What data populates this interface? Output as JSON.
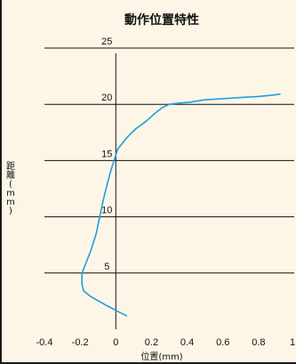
{
  "chart_data": {
    "type": "line",
    "title": "動作位置特性",
    "xlabel": "位置(mm)",
    "ylabel": "距離(mm)",
    "xlim": [
      -0.4,
      1.0
    ],
    "ylim": [
      0,
      25
    ],
    "x_ticks": [
      "-0.4",
      "-0.2",
      "0",
      "0.2",
      "0.4",
      "0.6",
      "0.8",
      "1"
    ],
    "y_ticks": [
      "25",
      "20",
      "15",
      "10",
      "5"
    ],
    "grid": "horizontal",
    "series": [
      {
        "color": "#1ea0dc",
        "points": [
          [
            0.06,
            1.2
          ],
          [
            0.01,
            1.6
          ],
          [
            -0.05,
            2.1
          ],
          [
            -0.14,
            2.9
          ],
          [
            -0.18,
            3.4
          ],
          [
            -0.19,
            4.0
          ],
          [
            -0.19,
            4.5
          ],
          [
            -0.19,
            5.0
          ],
          [
            -0.17,
            5.8
          ],
          [
            -0.14,
            7.0
          ],
          [
            -0.11,
            8.5
          ],
          [
            -0.09,
            10.0
          ],
          [
            -0.07,
            11.5
          ],
          [
            -0.05,
            12.8
          ],
          [
            -0.03,
            14.0
          ],
          [
            -0.01,
            15.0
          ],
          [
            0.01,
            16.0
          ],
          [
            0.06,
            17.0
          ],
          [
            0.11,
            17.8
          ],
          [
            0.17,
            18.5
          ],
          [
            0.22,
            19.2
          ],
          [
            0.26,
            19.7
          ],
          [
            0.3,
            20.0
          ],
          [
            0.35,
            20.1
          ],
          [
            0.42,
            20.2
          ],
          [
            0.5,
            20.4
          ],
          [
            0.6,
            20.5
          ],
          [
            0.7,
            20.6
          ],
          [
            0.8,
            20.7
          ],
          [
            0.87,
            20.8
          ],
          [
            0.92,
            20.9
          ]
        ]
      }
    ]
  }
}
